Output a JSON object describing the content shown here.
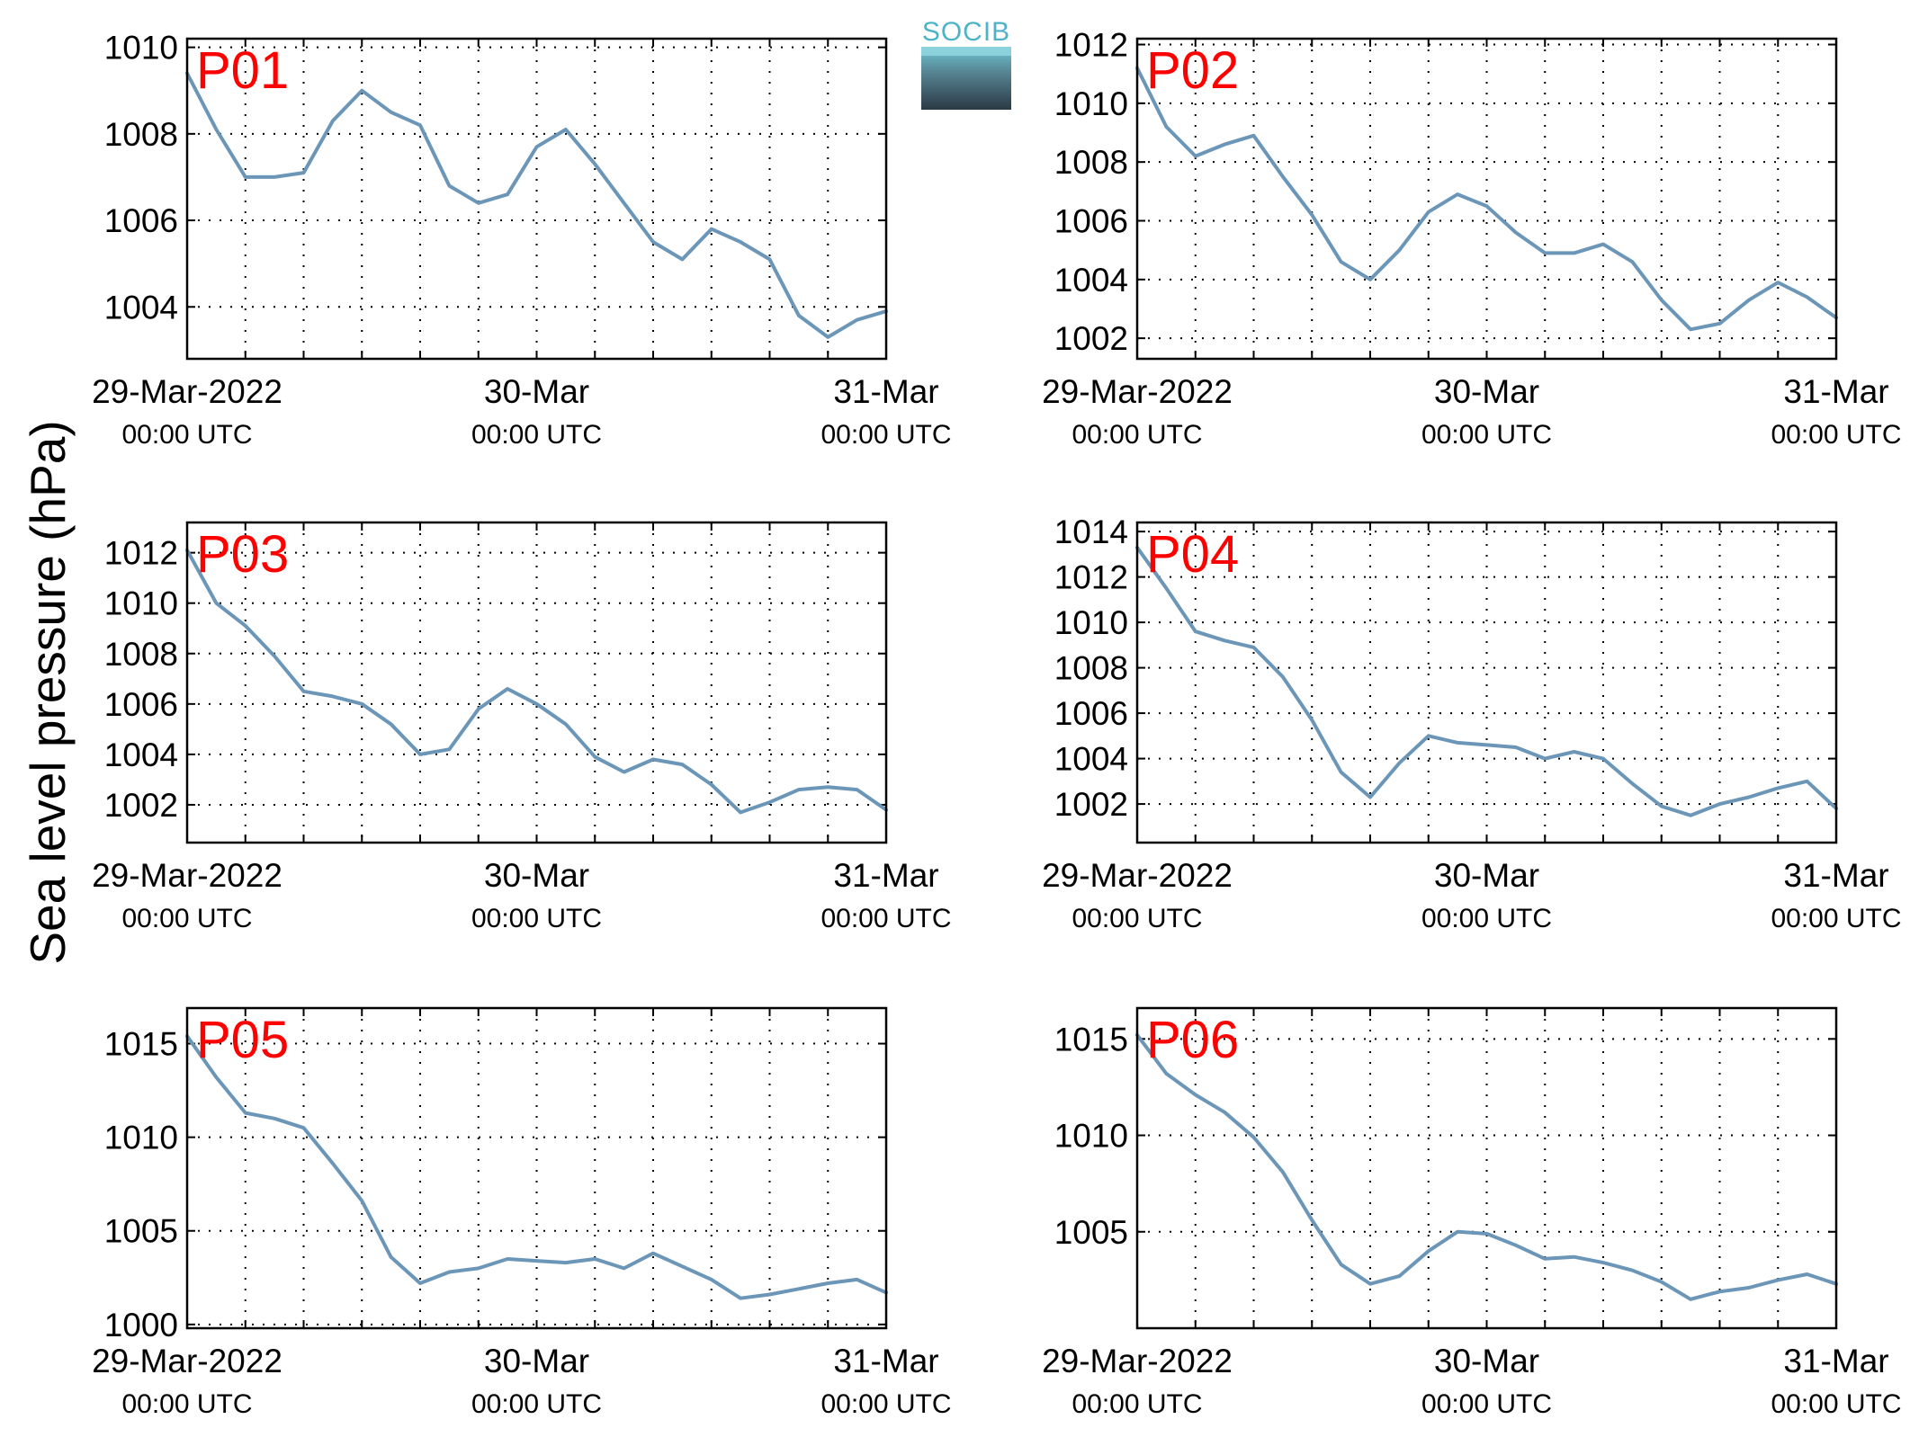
{
  "colors": {
    "line": "#6b96b8",
    "panel_label": "#ff0000",
    "logo_text": "#4fb3c8"
  },
  "logo": {
    "text": "SOCIB"
  },
  "chart_data": {
    "type": "line",
    "ylabel": "Sea level pressure (hPa)",
    "x_range": [
      "2022-03-29 00:00",
      "2022-03-31 00:00"
    ],
    "x_tick_dates": [
      "29-Mar-2022",
      "30-Mar",
      "31-Mar"
    ],
    "x_tick_times": [
      "00:00 UTC",
      "00:00 UTC",
      "00:00 UTC"
    ],
    "grid": true,
    "panels": [
      {
        "name": "P01",
        "ylim": [
          1002.8,
          1010.2
        ],
        "yticks": [
          1004,
          1006,
          1008,
          1010
        ],
        "x": [
          "2022-03-29 00:00",
          "2022-03-29 02:00",
          "2022-03-29 04:00",
          "2022-03-29 06:00",
          "2022-03-29 08:00",
          "2022-03-29 10:00",
          "2022-03-29 12:00",
          "2022-03-29 14:00",
          "2022-03-29 16:00",
          "2022-03-29 18:00",
          "2022-03-29 20:00",
          "2022-03-29 22:00",
          "2022-03-30 00:00",
          "2022-03-30 02:00",
          "2022-03-30 04:00",
          "2022-03-30 06:00",
          "2022-03-30 08:00",
          "2022-03-30 10:00",
          "2022-03-30 12:00",
          "2022-03-30 14:00",
          "2022-03-30 16:00",
          "2022-03-30 18:00",
          "2022-03-30 20:00",
          "2022-03-30 22:00",
          "2022-03-31 00:00"
        ],
        "y": [
          1009.4,
          1008.1,
          1007.0,
          1007.0,
          1007.1,
          1008.3,
          1009.0,
          1008.5,
          1008.2,
          1006.8,
          1006.4,
          1006.6,
          1007.7,
          1008.1,
          1007.3,
          1006.4,
          1005.5,
          1005.1,
          1005.8,
          1005.5,
          1005.1,
          1003.8,
          1003.3,
          1003.7,
          1003.9
        ]
      },
      {
        "name": "P02",
        "ylim": [
          1001.3,
          1012.2
        ],
        "yticks": [
          1002,
          1004,
          1006,
          1008,
          1010,
          1012
        ],
        "x": [
          "2022-03-29 00:00",
          "2022-03-29 02:00",
          "2022-03-29 04:00",
          "2022-03-29 06:00",
          "2022-03-29 08:00",
          "2022-03-29 10:00",
          "2022-03-29 12:00",
          "2022-03-29 14:00",
          "2022-03-29 16:00",
          "2022-03-29 18:00",
          "2022-03-29 20:00",
          "2022-03-29 22:00",
          "2022-03-30 00:00",
          "2022-03-30 02:00",
          "2022-03-30 04:00",
          "2022-03-30 06:00",
          "2022-03-30 08:00",
          "2022-03-30 10:00",
          "2022-03-30 12:00",
          "2022-03-30 14:00",
          "2022-03-30 16:00",
          "2022-03-30 18:00",
          "2022-03-30 20:00",
          "2022-03-30 22:00",
          "2022-03-31 00:00"
        ],
        "y": [
          1011.2,
          1009.2,
          1008.2,
          1008.6,
          1008.9,
          1007.5,
          1006.2,
          1004.6,
          1004.0,
          1005.0,
          1006.3,
          1006.9,
          1006.5,
          1005.6,
          1004.9,
          1004.9,
          1005.2,
          1004.6,
          1003.3,
          1002.3,
          1002.5,
          1003.3,
          1003.9,
          1003.4,
          1002.7
        ]
      },
      {
        "name": "P03",
        "ylim": [
          1000.5,
          1013.2
        ],
        "yticks": [
          1002,
          1004,
          1006,
          1008,
          1010,
          1012
        ],
        "x": [
          "2022-03-29 00:00",
          "2022-03-29 02:00",
          "2022-03-29 04:00",
          "2022-03-29 06:00",
          "2022-03-29 08:00",
          "2022-03-29 10:00",
          "2022-03-29 12:00",
          "2022-03-29 14:00",
          "2022-03-29 16:00",
          "2022-03-29 18:00",
          "2022-03-29 20:00",
          "2022-03-29 22:00",
          "2022-03-30 00:00",
          "2022-03-30 02:00",
          "2022-03-30 04:00",
          "2022-03-30 06:00",
          "2022-03-30 08:00",
          "2022-03-30 10:00",
          "2022-03-30 12:00",
          "2022-03-30 14:00",
          "2022-03-30 16:00",
          "2022-03-30 18:00",
          "2022-03-30 20:00",
          "2022-03-30 22:00",
          "2022-03-31 00:00"
        ],
        "y": [
          1012.1,
          1010.0,
          1009.1,
          1007.9,
          1006.5,
          1006.3,
          1006.0,
          1005.2,
          1004.0,
          1004.2,
          1005.8,
          1006.6,
          1006.0,
          1005.2,
          1003.9,
          1003.3,
          1003.8,
          1003.6,
          1002.8,
          1001.7,
          1002.1,
          1002.6,
          1002.7,
          1002.6,
          1001.8
        ]
      },
      {
        "name": "P04",
        "ylim": [
          1000.3,
          1014.4
        ],
        "yticks": [
          1002,
          1004,
          1006,
          1008,
          1010,
          1012,
          1014
        ],
        "x": [
          "2022-03-29 00:00",
          "2022-03-29 02:00",
          "2022-03-29 04:00",
          "2022-03-29 06:00",
          "2022-03-29 08:00",
          "2022-03-29 10:00",
          "2022-03-29 12:00",
          "2022-03-29 14:00",
          "2022-03-29 16:00",
          "2022-03-29 18:00",
          "2022-03-29 20:00",
          "2022-03-29 22:00",
          "2022-03-30 00:00",
          "2022-03-30 02:00",
          "2022-03-30 04:00",
          "2022-03-30 06:00",
          "2022-03-30 08:00",
          "2022-03-30 10:00",
          "2022-03-30 12:00",
          "2022-03-30 14:00",
          "2022-03-30 16:00",
          "2022-03-30 18:00",
          "2022-03-30 20:00",
          "2022-03-30 22:00",
          "2022-03-31 00:00"
        ],
        "y": [
          1013.3,
          1011.5,
          1009.6,
          1009.2,
          1008.9,
          1007.6,
          1005.7,
          1003.4,
          1002.3,
          1003.8,
          1005.0,
          1004.7,
          1004.6,
          1004.5,
          1004.0,
          1004.3,
          1004.0,
          1002.9,
          1001.9,
          1001.5,
          1002.0,
          1002.3,
          1002.7,
          1003.0,
          1001.8
        ]
      },
      {
        "name": "P05",
        "ylim": [
          999.8,
          1016.9
        ],
        "yticks": [
          1000,
          1005,
          1010,
          1015
        ],
        "x": [
          "2022-03-29 00:00",
          "2022-03-29 02:00",
          "2022-03-29 04:00",
          "2022-03-29 06:00",
          "2022-03-29 08:00",
          "2022-03-29 10:00",
          "2022-03-29 12:00",
          "2022-03-29 14:00",
          "2022-03-29 16:00",
          "2022-03-29 18:00",
          "2022-03-29 20:00",
          "2022-03-29 22:00",
          "2022-03-30 00:00",
          "2022-03-30 02:00",
          "2022-03-30 04:00",
          "2022-03-30 06:00",
          "2022-03-30 08:00",
          "2022-03-30 10:00",
          "2022-03-30 12:00",
          "2022-03-30 14:00",
          "2022-03-30 16:00",
          "2022-03-30 18:00",
          "2022-03-30 20:00",
          "2022-03-30 22:00",
          "2022-03-31 00:00"
        ],
        "y": [
          1015.4,
          1013.2,
          1011.3,
          1011.0,
          1010.5,
          1008.6,
          1006.6,
          1003.6,
          1002.2,
          1002.8,
          1003.0,
          1003.5,
          1003.4,
          1003.3,
          1003.5,
          1003.0,
          1003.8,
          1003.1,
          1002.4,
          1001.4,
          1001.6,
          1001.9,
          1002.2,
          1002.4,
          1001.7
        ]
      },
      {
        "name": "P06",
        "ylim": [
          1000.0,
          1016.6
        ],
        "yticks": [
          1005,
          1010,
          1015
        ],
        "x": [
          "2022-03-29 00:00",
          "2022-03-29 02:00",
          "2022-03-29 04:00",
          "2022-03-29 06:00",
          "2022-03-29 08:00",
          "2022-03-29 10:00",
          "2022-03-29 12:00",
          "2022-03-29 14:00",
          "2022-03-29 16:00",
          "2022-03-29 18:00",
          "2022-03-29 20:00",
          "2022-03-29 22:00",
          "2022-03-30 00:00",
          "2022-03-30 02:00",
          "2022-03-30 04:00",
          "2022-03-30 06:00",
          "2022-03-30 08:00",
          "2022-03-30 10:00",
          "2022-03-30 12:00",
          "2022-03-30 14:00",
          "2022-03-30 16:00",
          "2022-03-30 18:00",
          "2022-03-30 20:00",
          "2022-03-30 22:00",
          "2022-03-31 00:00"
        ],
        "y": [
          1015.2,
          1013.2,
          1012.1,
          1011.2,
          1009.9,
          1008.1,
          1005.6,
          1003.3,
          1002.3,
          1002.7,
          1004.0,
          1005.0,
          1004.9,
          1004.3,
          1003.6,
          1003.7,
          1003.4,
          1003.0,
          1002.4,
          1001.5,
          1001.9,
          1002.1,
          1002.5,
          1002.8,
          1002.3
        ]
      }
    ]
  }
}
